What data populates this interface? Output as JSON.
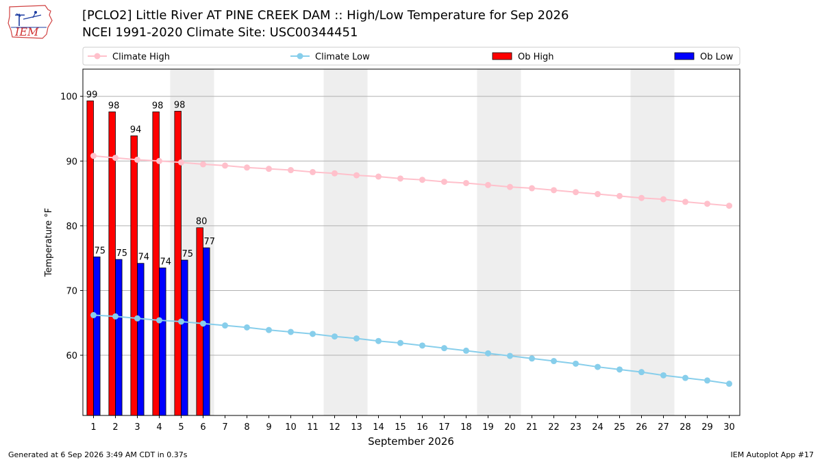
{
  "logo": {
    "text": "IEM"
  },
  "chart_data": {
    "type": "bar",
    "title": "[PCLO2] Little River  AT PINE CREEK DAM :: High/Low Temperature for Sep 2026",
    "subtitle": "NCEI 1991-2020 Climate Site: USC00344451",
    "xlabel": "September 2026",
    "ylabel": "Temperature °F",
    "ylim": [
      50.7,
      104.2
    ],
    "yticks": [
      60,
      70,
      80,
      90,
      100
    ],
    "xticks": [
      1,
      2,
      3,
      4,
      5,
      6,
      7,
      8,
      9,
      10,
      11,
      12,
      13,
      14,
      15,
      16,
      17,
      18,
      19,
      20,
      21,
      22,
      23,
      24,
      25,
      26,
      27,
      28,
      29,
      30
    ],
    "weekend_shading": [
      [
        5,
        6
      ],
      [
        12,
        13
      ],
      [
        19,
        20
      ],
      [
        26,
        27
      ]
    ],
    "grid": "y",
    "legend_placement": "top",
    "legend": [
      "Climate High",
      "Climate Low",
      "Ob High",
      "Ob Low"
    ],
    "bar_series": [
      {
        "name": "Ob High",
        "color": "#ff0000",
        "days": [
          1,
          2,
          3,
          4,
          5,
          6
        ],
        "values": [
          99.3,
          97.6,
          93.9,
          97.6,
          97.7,
          79.7
        ],
        "labels": [
          "99",
          "98",
          "94",
          "98",
          "98",
          "80"
        ]
      },
      {
        "name": "Ob Low",
        "color": "#0000ff",
        "days": [
          1,
          2,
          3,
          4,
          5,
          6
        ],
        "values": [
          75.2,
          74.8,
          74.2,
          73.5,
          74.7,
          76.6
        ],
        "labels": [
          "75",
          "75",
          "74",
          "74",
          "75",
          "77"
        ]
      }
    ],
    "line_series": [
      {
        "name": "Climate High",
        "color": "#ffc0cb",
        "values": [
          90.8,
          90.5,
          90.2,
          90.0,
          89.8,
          89.5,
          89.3,
          89.0,
          88.8,
          88.6,
          88.3,
          88.1,
          87.8,
          87.6,
          87.3,
          87.1,
          86.8,
          86.6,
          86.3,
          86.0,
          85.8,
          85.5,
          85.2,
          84.9,
          84.6,
          84.3,
          84.1,
          83.7,
          83.4,
          83.1
        ]
      },
      {
        "name": "Climate Low",
        "color": "#87ceeb",
        "values": [
          66.2,
          66.0,
          65.7,
          65.4,
          65.2,
          64.9,
          64.6,
          64.3,
          63.9,
          63.6,
          63.3,
          62.9,
          62.6,
          62.2,
          61.9,
          61.5,
          61.1,
          60.7,
          60.3,
          59.9,
          59.5,
          59.1,
          58.7,
          58.2,
          57.8,
          57.4,
          56.9,
          56.5,
          56.1,
          55.6
        ]
      }
    ]
  },
  "footer": {
    "generated": "Generated at 6 Sep 2026 3:49 AM CDT in 0.37s",
    "app": "IEM Autoplot App #17"
  }
}
